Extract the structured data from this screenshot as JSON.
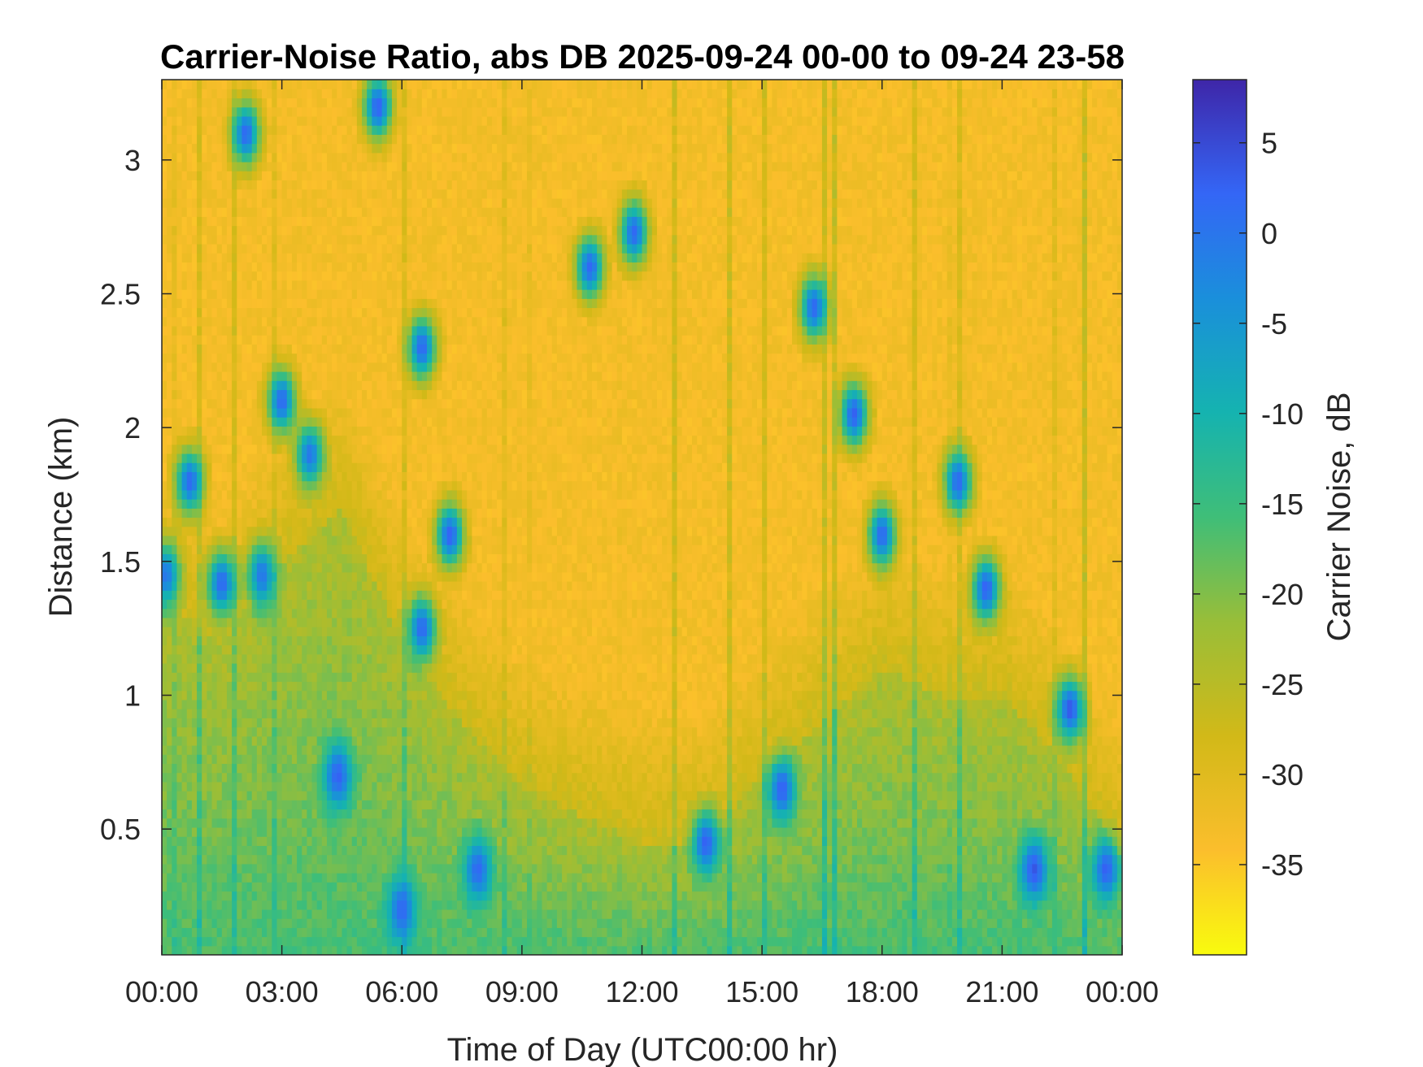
{
  "chart_data": {
    "type": "heatmap",
    "title": "Carrier-Noise Ratio, abs DB 2025-09-24 00-00 to 09-24 23-58",
    "xlabel": "Time of Day (UTC00:00 hr)",
    "ylabel": "Distance (km)",
    "colorbar_label": "Carrier Noise, dB",
    "xlim": [
      0,
      24
    ],
    "ylim": [
      0.03,
      3.3
    ],
    "clim": [
      -40,
      8.5
    ],
    "colormap": "parula-reversed",
    "x_ticks": [
      0,
      3,
      6,
      9,
      12,
      15,
      18,
      21,
      24
    ],
    "x_tick_labels": [
      "00:00",
      "03:00",
      "06:00",
      "09:00",
      "12:00",
      "15:00",
      "18:00",
      "21:00",
      "00:00"
    ],
    "y_ticks": [
      0.5,
      1,
      1.5,
      2,
      2.5,
      3
    ],
    "y_tick_labels": [
      "0.5",
      "1",
      "1.5",
      "2",
      "2.5",
      "3"
    ],
    "colorbar_ticks": [
      5,
      0,
      -5,
      -10,
      -15,
      -20,
      -25,
      -30,
      -35
    ],
    "colorbar_tick_labels": [
      "5",
      "0",
      "-5",
      "-10",
      "-15",
      "-20",
      "-25",
      "-30",
      "-35"
    ],
    "background_value_db": -33,
    "boundary_layer_top_km": [
      [
        0,
        1.35
      ],
      [
        1.5,
        1.2
      ],
      [
        3,
        1.5
      ],
      [
        4.5,
        1.7
      ],
      [
        6,
        1.2
      ],
      [
        7.5,
        0.9
      ],
      [
        9,
        0.65
      ],
      [
        10.5,
        0.55
      ],
      [
        12,
        0.45
      ],
      [
        13.5,
        0.45
      ],
      [
        15,
        0.7
      ],
      [
        16.5,
        0.9
      ],
      [
        18,
        1.1
      ],
      [
        19.5,
        1.0
      ],
      [
        21,
        1.0
      ],
      [
        22.5,
        0.75
      ],
      [
        24,
        0.4
      ]
    ],
    "strong_return_features": [
      {
        "t": 0.1,
        "z": 1.45,
        "db": 0
      },
      {
        "t": 0.7,
        "z": 1.8,
        "db": 2
      },
      {
        "t": 1.5,
        "z": 1.42,
        "db": 2
      },
      {
        "t": 2.1,
        "z": 3.1,
        "db": 2
      },
      {
        "t": 2.5,
        "z": 1.45,
        "db": 0
      },
      {
        "t": 3.0,
        "z": 2.1,
        "db": 2
      },
      {
        "t": 3.7,
        "z": 1.9,
        "db": 0
      },
      {
        "t": 4.4,
        "z": 0.7,
        "db": 3
      },
      {
        "t": 5.4,
        "z": 3.2,
        "db": 3
      },
      {
        "t": 6.0,
        "z": 0.2,
        "db": 2
      },
      {
        "t": 6.5,
        "z": 2.3,
        "db": 2
      },
      {
        "t": 6.5,
        "z": 1.25,
        "db": 2
      },
      {
        "t": 7.2,
        "z": 1.6,
        "db": 3
      },
      {
        "t": 7.9,
        "z": 0.35,
        "db": 2
      },
      {
        "t": 10.7,
        "z": 2.6,
        "db": 2
      },
      {
        "t": 11.8,
        "z": 2.73,
        "db": 2
      },
      {
        "t": 13.6,
        "z": 0.45,
        "db": 3
      },
      {
        "t": 15.5,
        "z": 0.65,
        "db": 3
      },
      {
        "t": 16.3,
        "z": 2.45,
        "db": 2
      },
      {
        "t": 17.3,
        "z": 2.05,
        "db": 3
      },
      {
        "t": 18.0,
        "z": 1.6,
        "db": 2
      },
      {
        "t": 19.9,
        "z": 1.8,
        "db": 2
      },
      {
        "t": 20.6,
        "z": 1.4,
        "db": 3
      },
      {
        "t": 21.8,
        "z": 0.35,
        "db": 4
      },
      {
        "t": 22.7,
        "z": 0.95,
        "db": 4
      },
      {
        "t": 23.6,
        "z": 0.35,
        "db": 3
      }
    ]
  }
}
